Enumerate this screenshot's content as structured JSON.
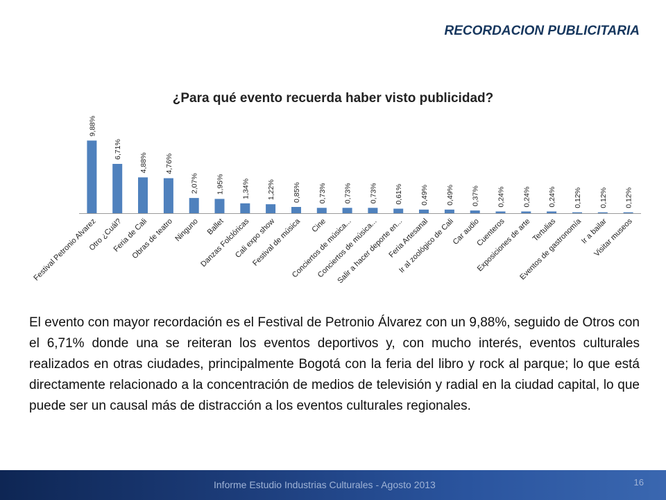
{
  "header": {
    "section_title": "RECORDACION PUBLICITARIA"
  },
  "chart_data": {
    "type": "bar",
    "title": "¿Para qué evento recuerda haber visto publicidad?",
    "categories": [
      "Festival Petronio Alvarez",
      "Otro ¿Cuál?",
      "Feria de Cali",
      "Obras de teatro",
      "Ninguno",
      "Ballet",
      "Danzas Folclóricas",
      "Cali expo show",
      "Festival de música",
      "Cine",
      "Conciertos de música...",
      "Conciertos de música...",
      "Salir a hacer deporte en...",
      "Feria Artesanal",
      "Ir al zoológico de Cali",
      "Car audio",
      "Cuenteros",
      "Exposiciones de arte",
      "Tertulias",
      "Eventos de gastronomía",
      "Ir a bailar",
      "Visitar museos"
    ],
    "values": [
      9.88,
      6.71,
      4.88,
      4.76,
      2.07,
      1.95,
      1.34,
      1.22,
      0.85,
      0.73,
      0.73,
      0.73,
      0.61,
      0.49,
      0.49,
      0.37,
      0.24,
      0.24,
      0.24,
      0.12,
      0.12,
      0.12
    ],
    "data_labels": [
      "9,88%",
      "6,71%",
      "4,88%",
      "4,76%",
      "2,07%",
      "1,95%",
      "1,34%",
      "1,22%",
      "0,85%",
      "0,73%",
      "0,73%",
      "0,73%",
      "0,61%",
      "0,49%",
      "0,49%",
      "0,37%",
      "0,24%",
      "0,24%",
      "0,24%",
      "0,12%",
      "0,12%",
      "0,12%"
    ],
    "bar_color": "#4f81bd",
    "legend": "none",
    "grid": false
  },
  "body": {
    "paragraph": "El evento con mayor recordación es el Festival de Petronio Álvarez con un 9,88%, seguido de Otros con el 6,71% donde una se reiteran los eventos deportivos y, con mucho interés, eventos culturales realizados en otras ciudades, principalmente Bogotá con la feria del libro y rock al parque; lo que está directamente relacionado a la concentración de medios de televisión y radial en la ciudad capital, lo que puede ser un causal más de distracción a los eventos culturales regionales."
  },
  "footer": {
    "report_title": "Informe Estudio Industrias Culturales  -  Agosto 2013",
    "page_number": "16"
  }
}
